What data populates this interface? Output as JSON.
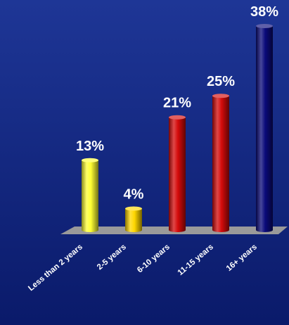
{
  "chart_data": {
    "type": "bar",
    "categories": [
      "Less than 2 years",
      "2-5 years",
      "6-10 years",
      "11-15 years",
      "16+ years"
    ],
    "values": [
      13,
      4,
      21,
      25,
      38
    ],
    "value_labels": [
      "13%",
      "4%",
      "21%",
      "25%",
      "38%"
    ],
    "unit": "%",
    "ylim": [
      0,
      38
    ],
    "title": "",
    "xlabel": "",
    "ylabel": "",
    "grid": false,
    "legend": "none",
    "colors": {
      "background_top": "#1e3696",
      "background_bottom": "#0a1a6a",
      "floor": "#9a9a9a",
      "bars": [
        "#ffff33",
        "#ffd700",
        "#d40a0a",
        "#d40a0a",
        "#0a0a7a"
      ]
    }
  }
}
